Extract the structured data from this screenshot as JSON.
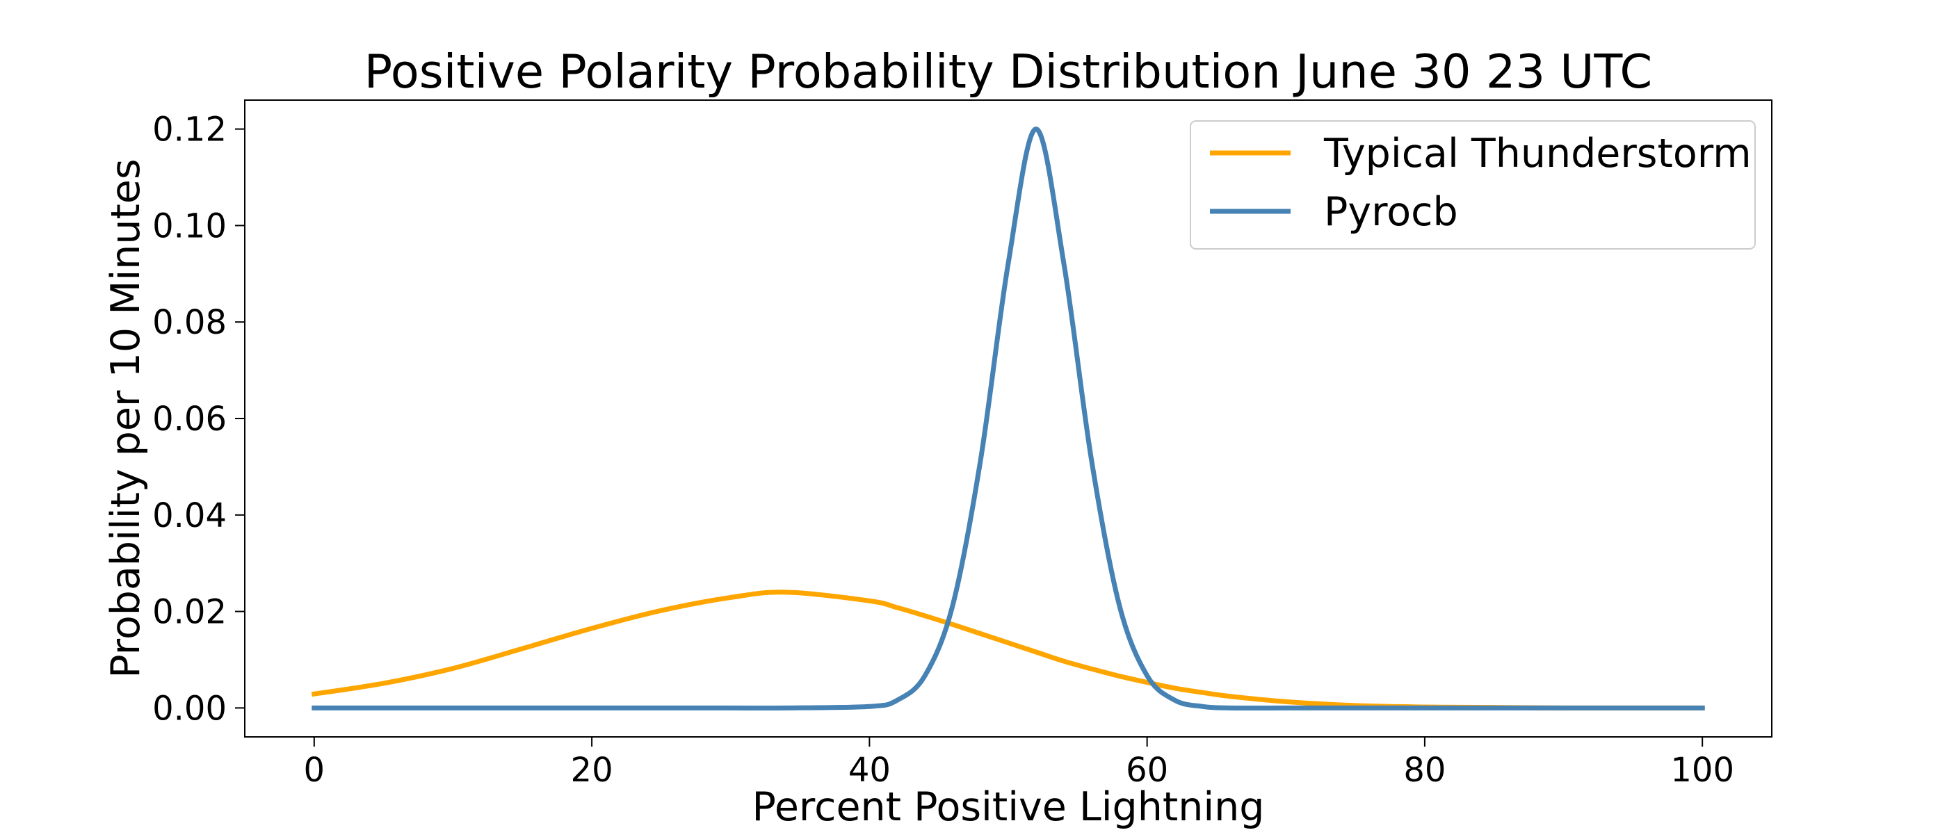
{
  "chart_data": {
    "type": "line",
    "title": "Positive Polarity Probability Distribution June 30 23 UTC",
    "xlabel": "Percent Positive Lightning",
    "ylabel": "Probability per 10 Minutes",
    "xlim": [
      -5,
      105
    ],
    "ylim": [
      -0.006,
      0.126
    ],
    "xticks": [
      0,
      20,
      40,
      60,
      80,
      100
    ],
    "xtick_labels": [
      "0",
      "20",
      "40",
      "60",
      "80",
      "100"
    ],
    "yticks": [
      0,
      0.02,
      0.04,
      0.06,
      0.08,
      0.1,
      0.12
    ],
    "ytick_labels": [
      "0.00",
      "0.02",
      "0.04",
      "0.06",
      "0.08",
      "0.10",
      "0.12"
    ],
    "grid": false,
    "legend_position": "upper right",
    "x": [
      0,
      5,
      10,
      15,
      20,
      25,
      30,
      34,
      40,
      42,
      44,
      46,
      48,
      50,
      52,
      54,
      56,
      58,
      60,
      62,
      64,
      66,
      70,
      75,
      80,
      85,
      90,
      95,
      100
    ],
    "series": [
      {
        "name": "Typical Thunderstorm",
        "color": "#FFA500",
        "values": [
          0.0029,
          0.0051,
          0.0082,
          0.0123,
          0.0165,
          0.0202,
          0.0229,
          0.024,
          0.0222,
          0.0208,
          0.0191,
          0.0173,
          0.0154,
          0.0135,
          0.0116,
          0.0097,
          0.0081,
          0.0066,
          0.0053,
          0.0041,
          0.0032,
          0.0024,
          0.0013,
          0.0005,
          0.0002,
          0.0001,
          0.0,
          0.0,
          0.0
        ]
      },
      {
        "name": "Pyrocb",
        "color": "#4682B4",
        "values": [
          0.0,
          0.0,
          0.0,
          0.0,
          0.0,
          0.0,
          0.0,
          0.0,
          0.0003,
          0.0016,
          0.0067,
          0.0213,
          0.0513,
          0.0922,
          0.12,
          0.0922,
          0.0513,
          0.0213,
          0.0067,
          0.0016,
          0.0003,
          0.0,
          0.0,
          0.0,
          0.0,
          0.0,
          0.0,
          0.0,
          0.0
        ]
      }
    ]
  }
}
